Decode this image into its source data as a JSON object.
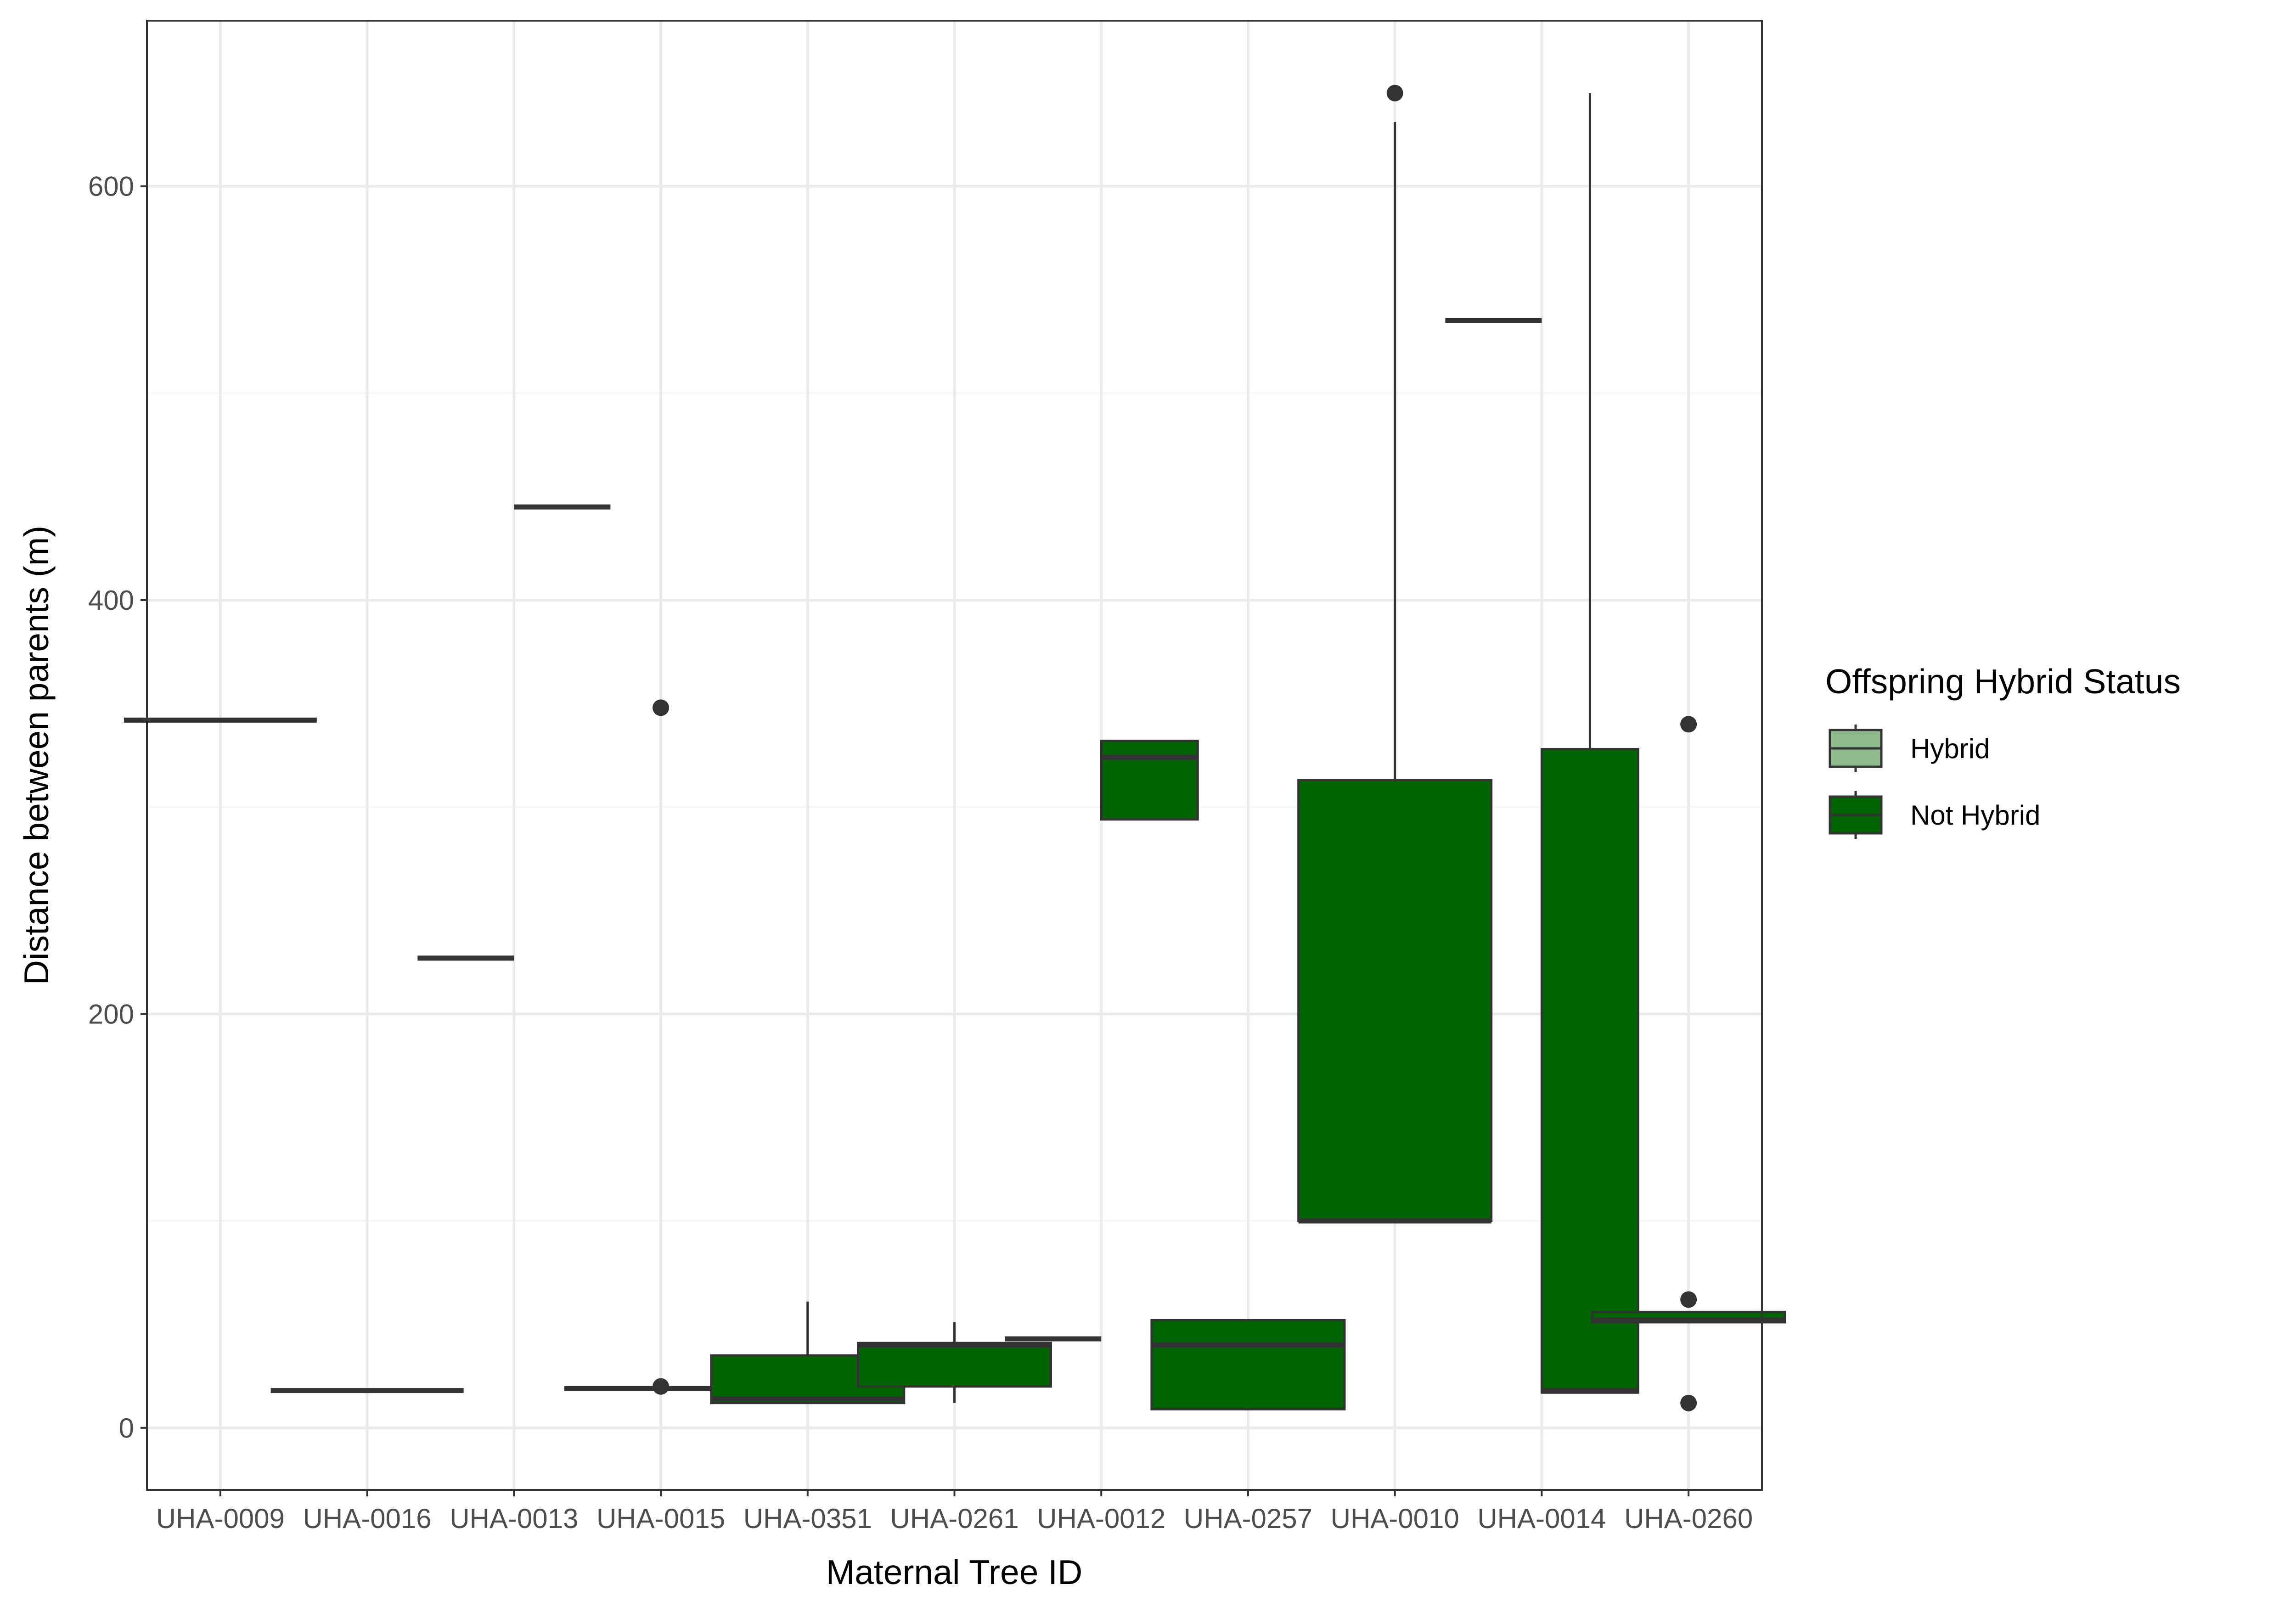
{
  "chart_data": {
    "type": "box",
    "title": "",
    "xlabel": "Maternal Tree ID",
    "ylabel": "Distance between parents (m)",
    "ylim": [
      -30,
      680
    ],
    "yticks": [
      0,
      200,
      400,
      600
    ],
    "grid": true,
    "legend": {
      "title": "Offspring Hybrid Status",
      "placement": "right",
      "items": [
        {
          "label": "Hybrid",
          "color": "#8fbc8f"
        },
        {
          "label": "Not Hybrid",
          "color": "#006400"
        }
      ]
    },
    "categories": [
      "UHA-0009",
      "UHA-0016",
      "UHA-0013",
      "UHA-0015",
      "UHA-0351",
      "UHA-0261",
      "UHA-0012",
      "UHA-0257",
      "UHA-0010",
      "UHA-0014",
      "UHA-0260"
    ],
    "boxes": [
      {
        "category": "UHA-0009",
        "group": "Hybrid",
        "whisker_low": 342,
        "q1": 342,
        "median": 342,
        "q3": 342,
        "whisker_high": 342,
        "outliers": []
      },
      {
        "category": "UHA-0016",
        "group": "Hybrid",
        "whisker_low": 18,
        "q1": 18,
        "median": 18,
        "q3": 18,
        "whisker_high": 18,
        "outliers": []
      },
      {
        "category": "UHA-0013",
        "group": "Hybrid",
        "whisker_low": 227,
        "q1": 227,
        "median": 227,
        "q3": 227,
        "whisker_high": 227,
        "outliers": []
      },
      {
        "category": "UHA-0013",
        "group": "Not Hybrid",
        "whisker_low": 445,
        "q1": 445,
        "median": 445,
        "q3": 445,
        "whisker_high": 445,
        "outliers": []
      },
      {
        "category": "UHA-0015",
        "group": "Hybrid",
        "whisker_low": 19,
        "q1": 19,
        "median": 19,
        "q3": 19,
        "whisker_high": 19,
        "outliers": [
          20,
          348
        ]
      },
      {
        "category": "UHA-0351",
        "group": "Not Hybrid",
        "whisker_low": 12,
        "q1": 12,
        "median": 14,
        "q3": 35,
        "whisker_high": 61,
        "outliers": []
      },
      {
        "category": "UHA-0261",
        "group": "Not Hybrid",
        "whisker_low": 12,
        "q1": 20,
        "median": 40,
        "q3": 41,
        "whisker_high": 51,
        "outliers": []
      },
      {
        "category": "UHA-0012",
        "group": "Hybrid",
        "whisker_low": 43,
        "q1": 43,
        "median": 43,
        "q3": 43,
        "whisker_high": 43,
        "outliers": []
      },
      {
        "category": "UHA-0012",
        "group": "Not Hybrid",
        "whisker_low": 294,
        "q1": 294,
        "median": 324,
        "q3": 332,
        "whisker_high": 332,
        "outliers": []
      },
      {
        "category": "UHA-0257",
        "group": "Not Hybrid",
        "whisker_low": 9,
        "q1": 9,
        "median": 40,
        "q3": 52,
        "whisker_high": 52,
        "outliers": []
      },
      {
        "category": "UHA-0010",
        "group": "Not Hybrid",
        "whisker_low": 100,
        "q1": 100,
        "median": 100,
        "q3": 313,
        "whisker_high": 631,
        "outliers": [
          645
        ]
      },
      {
        "category": "UHA-0014",
        "group": "Hybrid",
        "whisker_low": 535,
        "q1": 535,
        "median": 535,
        "q3": 535,
        "whisker_high": 535,
        "outliers": []
      },
      {
        "category": "UHA-0014",
        "group": "Not Hybrid",
        "whisker_low": 17,
        "q1": 17,
        "median": 18,
        "q3": 328,
        "whisker_high": 645,
        "outliers": []
      },
      {
        "category": "UHA-0260",
        "group": "Not Hybrid",
        "whisker_low": 51,
        "q1": 51,
        "median": 52,
        "q3": 56,
        "whisker_high": 56,
        "outliers": [
          12,
          62,
          340
        ]
      }
    ]
  },
  "colors": {
    "panel_border": "#333333",
    "grid_major": "#ebebeb",
    "grid_minor": "#f5f5f5",
    "box_outline": "#333333",
    "hybrid": "#8fbc8f",
    "not_hybrid": "#006400"
  }
}
